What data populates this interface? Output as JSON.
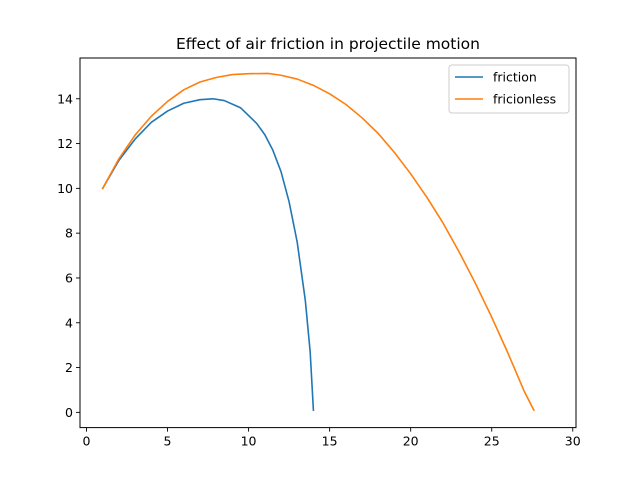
{
  "chart_data": {
    "type": "line",
    "title": "Effect of air friction in projectile motion",
    "xlabel": "",
    "ylabel": "",
    "xlim": [
      -0.4,
      30.2
    ],
    "ylim": [
      -0.68,
      15.82
    ],
    "xticks": [
      0,
      5,
      10,
      15,
      20,
      25,
      30
    ],
    "yticks": [
      0,
      2,
      4,
      6,
      8,
      10,
      12,
      14
    ],
    "grid": false,
    "legend_position": "top-right",
    "series": [
      {
        "name": "friction",
        "color": "#1f77b4",
        "points": [
          [
            1.0,
            10.0
          ],
          [
            2.0,
            11.25
          ],
          [
            3.0,
            12.2
          ],
          [
            4.0,
            12.95
          ],
          [
            5.0,
            13.45
          ],
          [
            6.0,
            13.8
          ],
          [
            7.0,
            13.96
          ],
          [
            7.8,
            14.0
          ],
          [
            8.5,
            13.92
          ],
          [
            9.5,
            13.6
          ],
          [
            10.5,
            12.9
          ],
          [
            11.0,
            12.4
          ],
          [
            11.5,
            11.7
          ],
          [
            12.0,
            10.75
          ],
          [
            12.5,
            9.4
          ],
          [
            13.0,
            7.6
          ],
          [
            13.5,
            5.0
          ],
          [
            13.8,
            2.7
          ],
          [
            14.0,
            0.1
          ]
        ]
      },
      {
        "name": "fricionless",
        "color": "#ff7f0e",
        "points": [
          [
            1.0,
            10.0
          ],
          [
            2.0,
            11.32
          ],
          [
            3.0,
            12.38
          ],
          [
            4.0,
            13.22
          ],
          [
            5.0,
            13.88
          ],
          [
            6.0,
            14.4
          ],
          [
            7.0,
            14.75
          ],
          [
            8.0,
            14.95
          ],
          [
            9.0,
            15.08
          ],
          [
            10.0,
            15.12
          ],
          [
            11.2,
            15.13
          ],
          [
            12.0,
            15.05
          ],
          [
            13.0,
            14.88
          ],
          [
            14.0,
            14.6
          ],
          [
            15.0,
            14.22
          ],
          [
            16.0,
            13.75
          ],
          [
            17.0,
            13.15
          ],
          [
            18.0,
            12.45
          ],
          [
            19.0,
            11.6
          ],
          [
            20.0,
            10.65
          ],
          [
            21.0,
            9.6
          ],
          [
            22.0,
            8.45
          ],
          [
            23.0,
            7.15
          ],
          [
            24.0,
            5.75
          ],
          [
            25.0,
            4.25
          ],
          [
            26.0,
            2.65
          ],
          [
            27.0,
            0.95
          ],
          [
            27.6,
            0.1
          ]
        ]
      }
    ]
  }
}
